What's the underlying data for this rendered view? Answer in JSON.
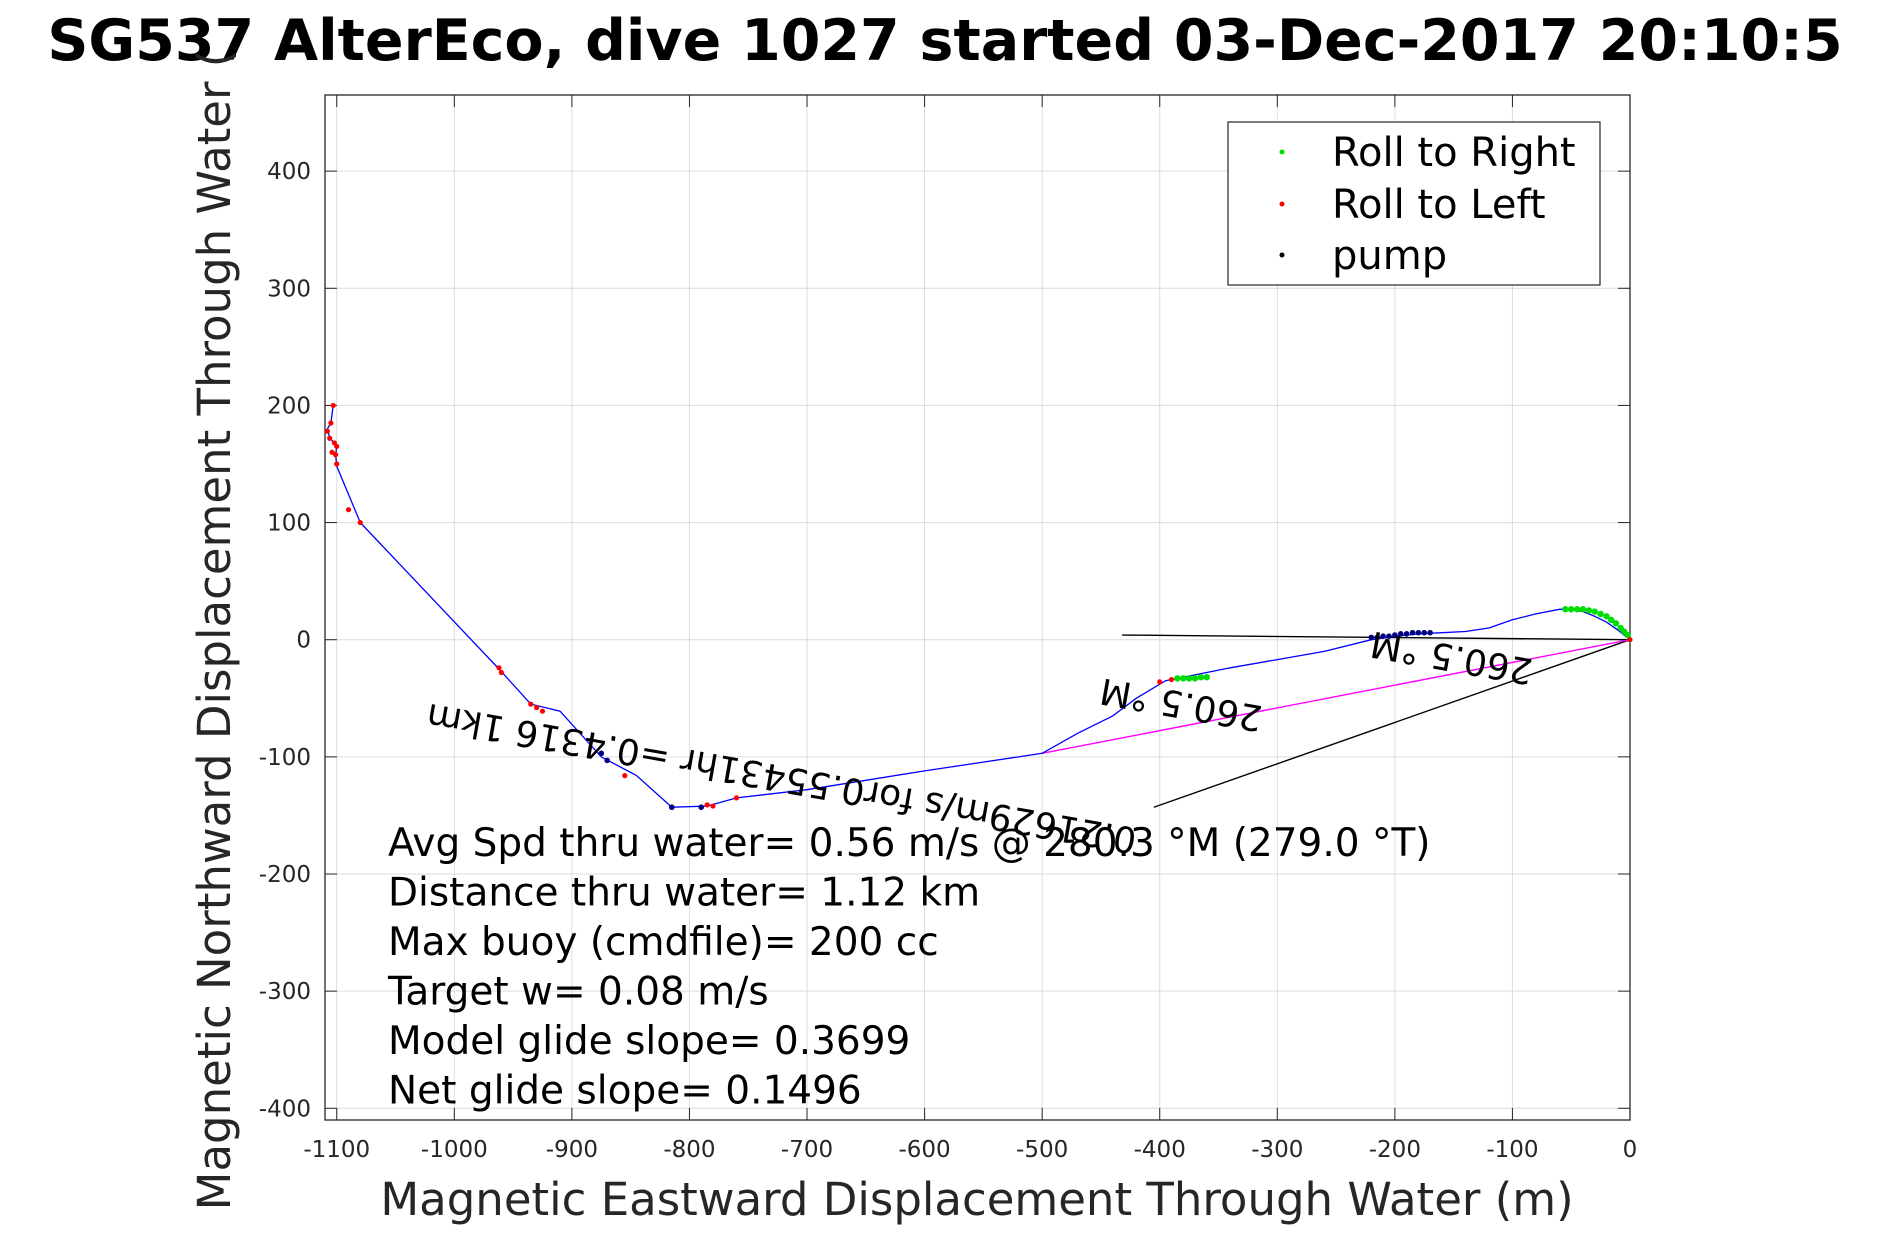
{
  "chart_data": {
    "type": "line",
    "title": "SG537 AlterEco, dive 1027 started 03-Dec-2017 20:10:5",
    "xlabel": "Magnetic Eastward Displacement Through Water (m)",
    "ylabel": "Magnetic Northward Displacement Through Water (",
    "xlim": [
      -1110,
      0
    ],
    "ylim": [
      -410,
      465
    ],
    "xticks": [
      -1100,
      -1000,
      -900,
      -800,
      -700,
      -600,
      -500,
      -400,
      -300,
      -200,
      -100,
      0
    ],
    "yticks": [
      -400,
      -300,
      -200,
      -100,
      0,
      100,
      200,
      300,
      400
    ],
    "grid": true,
    "legend_position": "top-right",
    "legend": [
      {
        "name": "Roll to Right",
        "color": "#00dd00"
      },
      {
        "name": "Roll to Left",
        "color": "#ff0000"
      },
      {
        "name": "pump",
        "color": "#000000"
      }
    ],
    "track": {
      "color": "#0000ff",
      "x": [
        0,
        -10,
        -20,
        -30,
        -40,
        -50,
        -60,
        -80,
        -100,
        -120,
        -140,
        -160,
        -180,
        -200,
        -220,
        -260,
        -300,
        -340,
        -370,
        -385,
        -395,
        -420,
        -440,
        -470,
        -500,
        -600,
        -700,
        -760,
        -785,
        -815,
        -845,
        -875,
        -910,
        -935,
        -962,
        -1080,
        -1100,
        -1101,
        -1100,
        -1102,
        -1106,
        -1108,
        -1105,
        -1103
      ],
      "y": [
        0,
        8,
        15,
        20,
        24,
        26,
        26,
        22,
        17,
        10,
        7,
        6,
        5,
        3,
        0,
        -10,
        -17,
        -24,
        -30,
        -33,
        -35,
        -50,
        -65,
        -80,
        -97,
        -112,
        -128,
        -135,
        -142,
        -143,
        -116,
        -100,
        -61,
        -55,
        -25,
        100,
        148,
        158,
        165,
        168,
        172,
        180,
        185,
        200
      ]
    },
    "roll_right": {
      "color": "#00dd00",
      "x": [
        -2,
        -5,
        -8,
        -12,
        -16,
        -20,
        -25,
        -30,
        -35,
        -40,
        -45,
        -50,
        -55,
        -360,
        -365,
        -370,
        -375,
        -380,
        -385
      ],
      "y": [
        4,
        7,
        10,
        14,
        17,
        20,
        22,
        24,
        25,
        26,
        26,
        26,
        26,
        -32,
        -32,
        -33,
        -33,
        -33,
        -33
      ]
    },
    "roll_left": {
      "color": "#ff0000",
      "x": [
        0,
        -390,
        -400,
        -760,
        -780,
        -785,
        -855,
        -925,
        -930,
        -935,
        -960,
        -962,
        -1080,
        -1090,
        -1100,
        -1101,
        -1100,
        -1102,
        -1106,
        -1108,
        -1105,
        -1103,
        -1104
      ],
      "y": [
        0,
        -34,
        -36,
        -135,
        -142,
        -141,
        -116,
        -61,
        -58,
        -55,
        -28,
        -24,
        100,
        111,
        150,
        158,
        165,
        168,
        172,
        178,
        185,
        200,
        160
      ]
    },
    "pump": {
      "color": "#000080",
      "x": [
        -215,
        -220,
        -200,
        -195,
        -190,
        -185,
        -180,
        -175,
        -170,
        -205,
        -210,
        -875,
        -870,
        -815,
        -790
      ],
      "y": [
        2,
        2,
        4,
        5,
        5,
        6,
        6,
        6,
        6,
        3,
        3,
        -97,
        -103,
        -143,
        -143
      ]
    },
    "avg_vector": {
      "x": [
        0,
        -500
      ],
      "y": [
        0,
        -97
      ],
      "color": "#ff00ff"
    },
    "reference_lines": [
      {
        "x": [
          0,
          -432
        ],
        "y": [
          0,
          4
        ],
        "color": "#000000"
      },
      {
        "x": [
          0,
          -405
        ],
        "y": [
          0,
          -143
        ],
        "color": "#000000"
      }
    ],
    "rotated_labels": [
      {
        "text": "0.21629m/s for0.55431hr =0.4316 1km",
        "x": -720,
        "y": -108,
        "angle": 190
      },
      {
        "text": "260.5 °M",
        "x": -380,
        "y": -45,
        "angle": 190
      },
      {
        "text": "260.5 °M",
        "x": -150,
        "y": -5,
        "angle": 190
      }
    ],
    "annotations": [
      "Avg Spd thru water=  0.56 m/s @ 280.3 °M (279.0 °T)",
      "Distance thru water=  1.12 km",
      "Max buoy (cmdfile)= 200 cc",
      "Target w= 0.08 m/s",
      "Model glide slope= 0.3699",
      "Net glide slope= 0.1496"
    ]
  }
}
